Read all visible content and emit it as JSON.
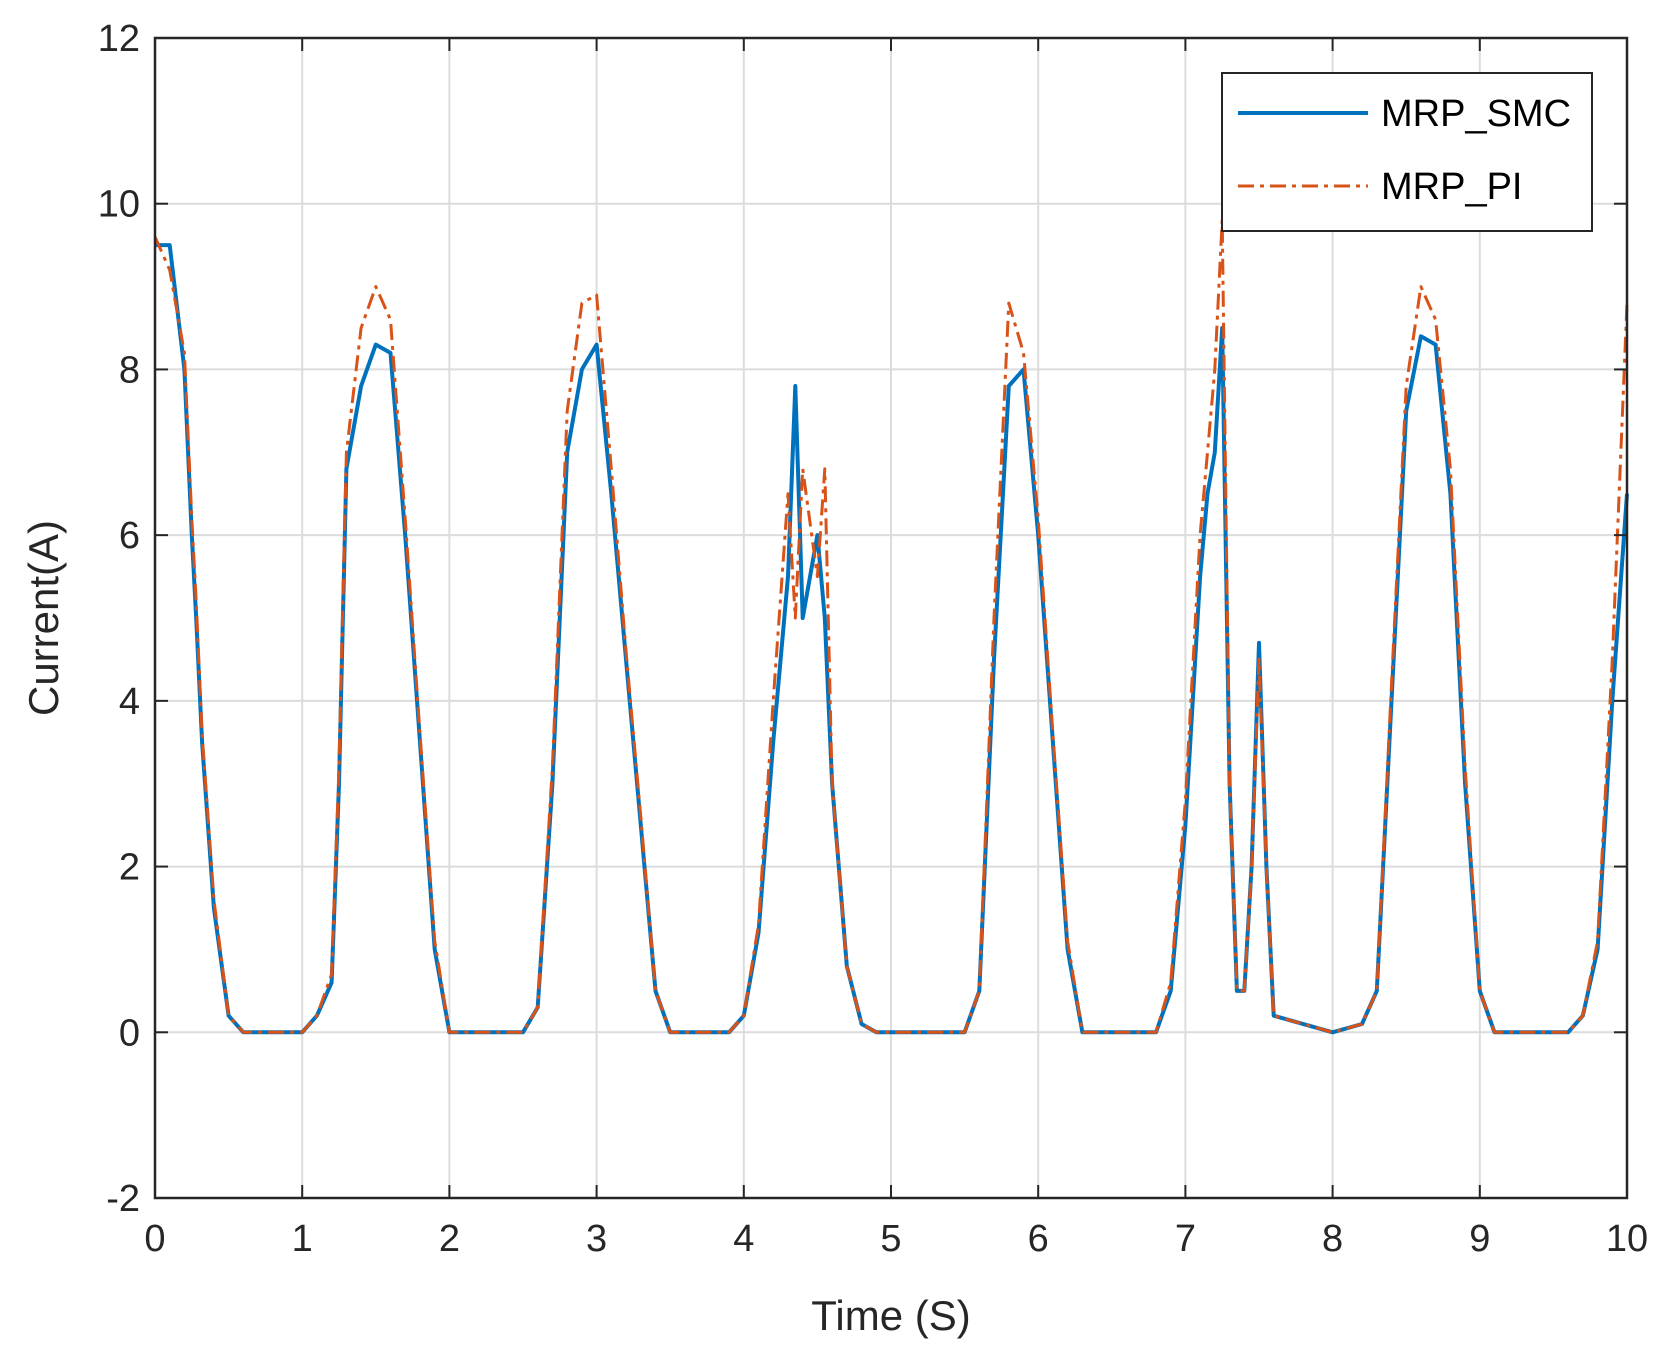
{
  "chart_data": {
    "type": "line",
    "title": "",
    "xlabel": "Time (S)",
    "ylabel": "Current(A)",
    "xlim": [
      0,
      10
    ],
    "ylim": [
      -2,
      12
    ],
    "xticks": [
      "0",
      "1",
      "2",
      "3",
      "4",
      "5",
      "6",
      "7",
      "8",
      "9",
      "10"
    ],
    "yticks": [
      "-2",
      "0",
      "2",
      "4",
      "6",
      "8",
      "10",
      "12"
    ],
    "grid": true,
    "legend_position": "top-right",
    "series": [
      {
        "name": "MRP_SMC",
        "color": "#0072BD",
        "style": "solid",
        "x": [
          0,
          0.1,
          0.2,
          0.25,
          0.28,
          0.32,
          0.4,
          0.5,
          0.6,
          1.0,
          1.1,
          1.2,
          1.25,
          1.3,
          1.4,
          1.5,
          1.6,
          1.7,
          1.8,
          1.9,
          2.0,
          2.5,
          2.6,
          2.7,
          2.8,
          2.9,
          3.0,
          3.1,
          3.2,
          3.3,
          3.4,
          3.5,
          3.9,
          4.0,
          4.1,
          4.2,
          4.3,
          4.35,
          4.4,
          4.5,
          4.55,
          4.6,
          4.7,
          4.8,
          4.9,
          5.0,
          5.5,
          5.6,
          5.7,
          5.8,
          5.9,
          6.0,
          6.1,
          6.2,
          6.3,
          6.8,
          6.9,
          7.0,
          7.1,
          7.15,
          7.2,
          7.25,
          7.3,
          7.35,
          7.4,
          7.45,
          7.5,
          7.55,
          7.6,
          8.0,
          8.2,
          8.3,
          8.4,
          8.5,
          8.6,
          8.7,
          8.8,
          8.9,
          9.0,
          9.1,
          9.5,
          9.6,
          9.7,
          9.8,
          9.9,
          10.0
        ],
        "values": [
          9.5,
          9.5,
          8.0,
          6.0,
          5.0,
          3.5,
          1.5,
          0.2,
          0.0,
          0.0,
          0.2,
          0.6,
          3.0,
          6.8,
          7.8,
          8.3,
          8.2,
          6.0,
          3.5,
          1.0,
          0.0,
          0.0,
          0.3,
          3.0,
          7.0,
          8.0,
          8.3,
          6.5,
          4.5,
          2.5,
          0.5,
          0.0,
          0.0,
          0.2,
          1.2,
          3.5,
          5.5,
          7.8,
          5.0,
          6.0,
          5.0,
          3.0,
          0.8,
          0.1,
          0.0,
          0.0,
          0.0,
          0.5,
          4.5,
          7.8,
          8.0,
          6.0,
          3.5,
          1.0,
          0.0,
          0.0,
          0.5,
          2.5,
          5.5,
          6.5,
          7.0,
          8.5,
          3.0,
          0.5,
          0.5,
          2.0,
          4.7,
          2.0,
          0.2,
          0.0,
          0.1,
          0.5,
          4.0,
          7.5,
          8.4,
          8.3,
          6.5,
          3.0,
          0.5,
          0.0,
          0.0,
          0.0,
          0.2,
          1.0,
          4.0,
          6.5
        ]
      },
      {
        "name": "MRP_PI",
        "color": "#D95319",
        "style": "dash-dot",
        "x": [
          0,
          0.1,
          0.2,
          0.25,
          0.28,
          0.32,
          0.4,
          0.5,
          0.6,
          1.0,
          1.1,
          1.2,
          1.25,
          1.3,
          1.4,
          1.5,
          1.6,
          1.7,
          1.8,
          1.9,
          2.0,
          2.5,
          2.6,
          2.7,
          2.8,
          2.9,
          3.0,
          3.1,
          3.2,
          3.3,
          3.4,
          3.5,
          3.9,
          4.0,
          4.1,
          4.2,
          4.3,
          4.35,
          4.4,
          4.5,
          4.55,
          4.6,
          4.7,
          4.8,
          4.9,
          5.0,
          5.5,
          5.6,
          5.7,
          5.8,
          5.9,
          6.0,
          6.1,
          6.2,
          6.3,
          6.8,
          6.9,
          7.0,
          7.1,
          7.15,
          7.2,
          7.25,
          7.3,
          7.35,
          7.4,
          7.45,
          7.5,
          7.55,
          7.6,
          8.0,
          8.2,
          8.3,
          8.4,
          8.5,
          8.6,
          8.7,
          8.8,
          8.9,
          9.0,
          9.1,
          9.5,
          9.6,
          9.7,
          9.8,
          9.9,
          10.0
        ],
        "values": [
          9.6,
          9.2,
          8.2,
          6.2,
          5.2,
          3.6,
          1.6,
          0.2,
          0.0,
          0.0,
          0.2,
          0.7,
          3.2,
          7.0,
          8.5,
          9.0,
          8.6,
          6.2,
          3.6,
          1.1,
          0.0,
          0.0,
          0.3,
          3.2,
          7.5,
          8.8,
          8.9,
          6.8,
          4.6,
          2.6,
          0.5,
          0.0,
          0.0,
          0.2,
          1.3,
          4.0,
          6.5,
          5.0,
          6.8,
          5.5,
          6.8,
          3.0,
          0.8,
          0.1,
          0.0,
          0.0,
          0.0,
          0.5,
          5.0,
          8.8,
          8.2,
          6.2,
          3.6,
          1.1,
          0.0,
          0.0,
          0.6,
          2.8,
          6.0,
          7.0,
          8.0,
          9.8,
          3.0,
          0.5,
          0.5,
          2.0,
          4.5,
          2.0,
          0.2,
          0.0,
          0.1,
          0.5,
          4.2,
          7.8,
          9.0,
          8.6,
          6.8,
          3.2,
          0.5,
          0.0,
          0.0,
          0.0,
          0.2,
          1.1,
          4.5,
          8.8
        ]
      }
    ]
  }
}
